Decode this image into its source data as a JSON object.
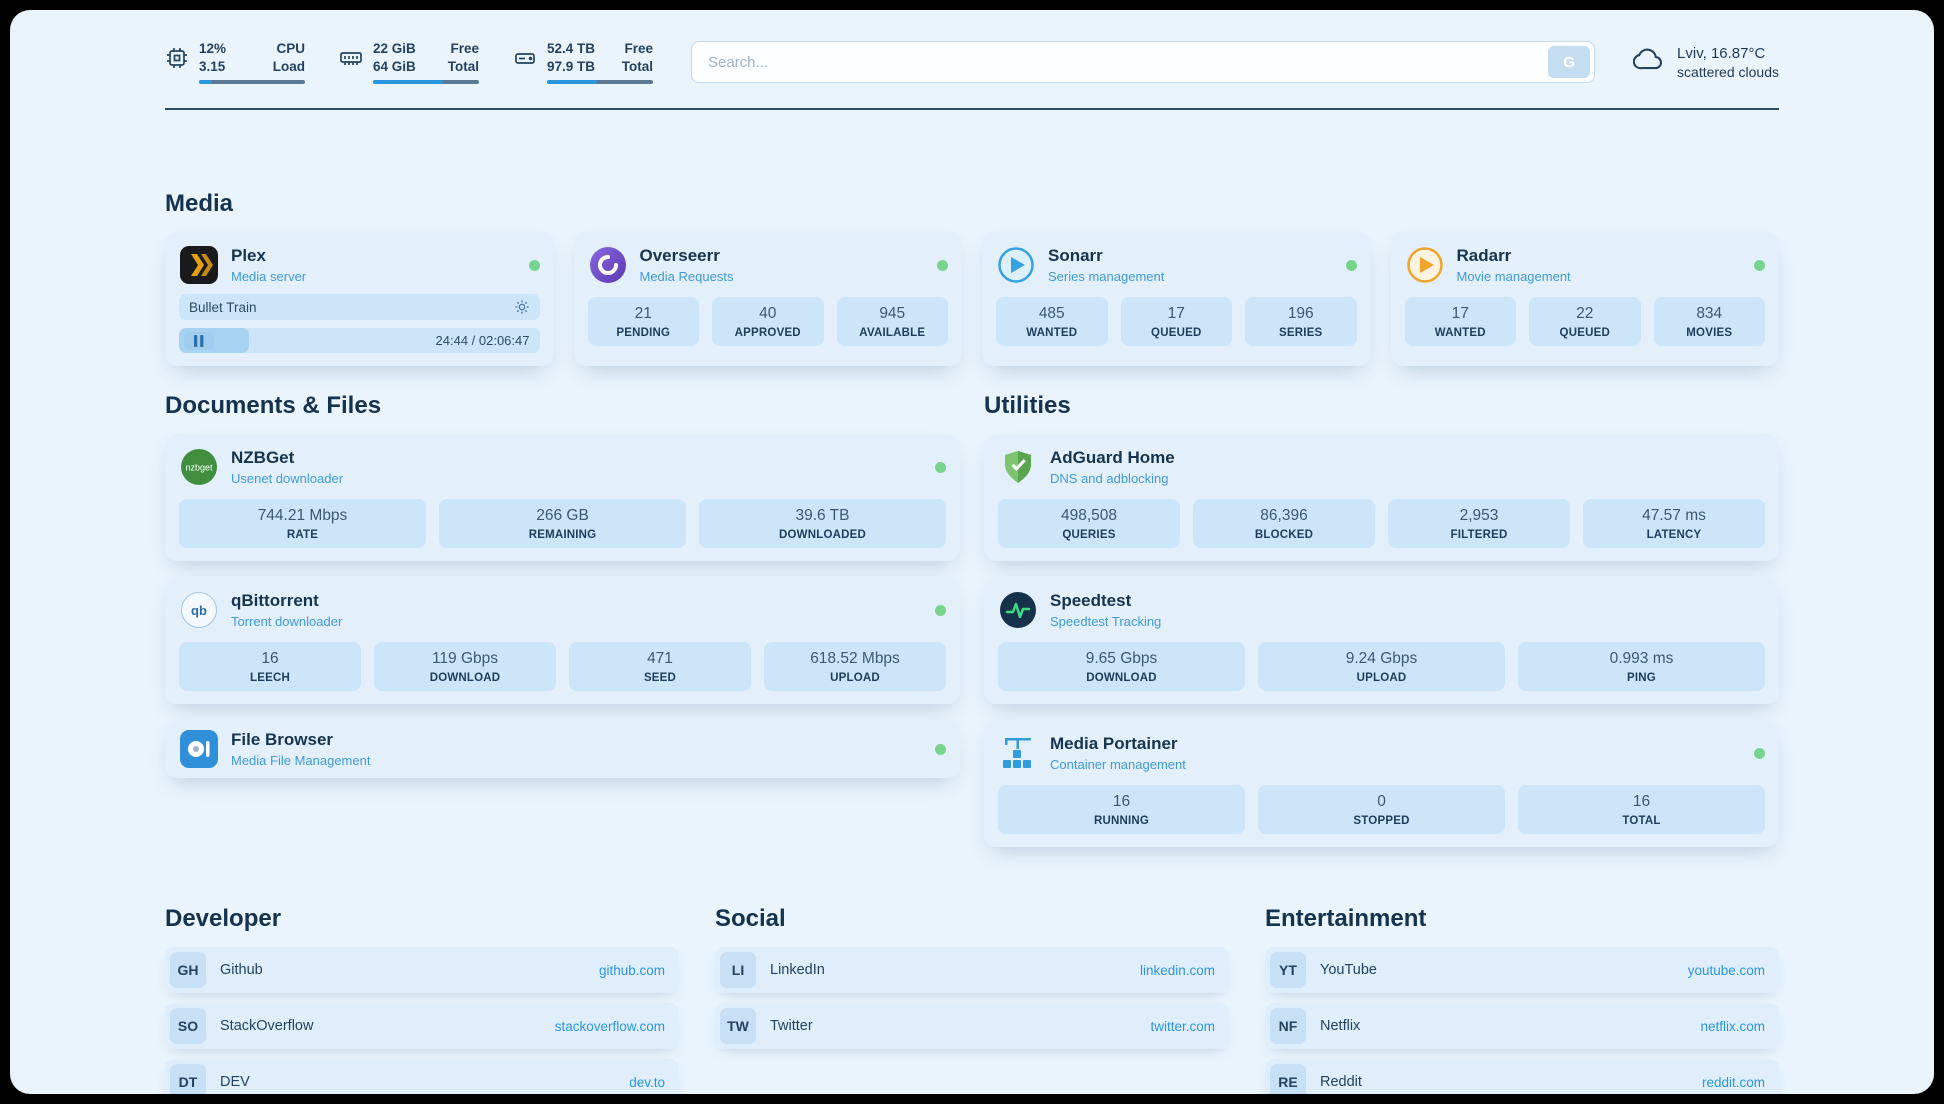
{
  "header": {
    "metrics": [
      {
        "value_top": "12%",
        "label_top": "CPU",
        "value_bottom": "3.15",
        "label_bottom": "Load",
        "progress_pct": 12
      },
      {
        "value_top": "22 GiB",
        "label_top": "Free",
        "value_bottom": "64 GiB",
        "label_bottom": "Total",
        "progress_pct": 66
      },
      {
        "value_top": "52.4 TB",
        "label_top": "Free",
        "value_bottom": "97.9 TB",
        "label_bottom": "Total",
        "progress_pct": 47
      }
    ],
    "search": {
      "placeholder": "Search...",
      "button_label": "G"
    },
    "weather": {
      "location": "Lviv, 16.87°C",
      "condition": "scattered clouds"
    }
  },
  "sections": {
    "media": "Media",
    "documents": "Documents & Files",
    "utilities": "Utilities",
    "developer": "Developer",
    "social": "Social",
    "entertainment": "Entertainment"
  },
  "apps": {
    "plex": {
      "name": "Plex",
      "subtitle": "Media server",
      "now_playing": "Bullet Train",
      "time": "24:44 / 02:06:47",
      "progress_pct": 19.5
    },
    "overseerr": {
      "name": "Overseerr",
      "subtitle": "Media Requests",
      "stats": [
        {
          "value": "21",
          "label": "PENDING"
        },
        {
          "value": "40",
          "label": "APPROVED"
        },
        {
          "value": "945",
          "label": "AVAILABLE"
        }
      ]
    },
    "sonarr": {
      "name": "Sonarr",
      "subtitle": "Series management",
      "stats": [
        {
          "value": "485",
          "label": "WANTED"
        },
        {
          "value": "17",
          "label": "QUEUED"
        },
        {
          "value": "196",
          "label": "SERIES"
        }
      ]
    },
    "radarr": {
      "name": "Radarr",
      "subtitle": "Movie management",
      "stats": [
        {
          "value": "17",
          "label": "WANTED"
        },
        {
          "value": "22",
          "label": "QUEUED"
        },
        {
          "value": "834",
          "label": "MOVIES"
        }
      ]
    },
    "nzbget": {
      "name": "NZBGet",
      "subtitle": "Usenet downloader",
      "icon_text": "nzbget",
      "stats": [
        {
          "value": "744.21 Mbps",
          "label": "RATE"
        },
        {
          "value": "266 GB",
          "label": "REMAINING"
        },
        {
          "value": "39.6 TB",
          "label": "DOWNLOADED"
        }
      ]
    },
    "qbittorrent": {
      "name": "qBittorrent",
      "subtitle": "Torrent downloader",
      "icon_text": "qb",
      "stats": [
        {
          "value": "16",
          "label": "LEECH"
        },
        {
          "value": "119 Gbps",
          "label": "DOWNLOAD"
        },
        {
          "value": "471",
          "label": "SEED"
        },
        {
          "value": "618.52 Mbps",
          "label": "UPLOAD"
        }
      ]
    },
    "filebrowser": {
      "name": "File Browser",
      "subtitle": "Media File Management"
    },
    "adguard": {
      "name": "AdGuard Home",
      "subtitle": "DNS and adblocking",
      "stats": [
        {
          "value": "498,508",
          "label": "QUERIES"
        },
        {
          "value": "86,396",
          "label": "BLOCKED"
        },
        {
          "value": "2,953",
          "label": "FILTERED"
        },
        {
          "value": "47.57 ms",
          "label": "LATENCY"
        }
      ]
    },
    "speedtest": {
      "name": "Speedtest",
      "subtitle": "Speedtest Tracking",
      "stats": [
        {
          "value": "9.65 Gbps",
          "label": "DOWNLOAD"
        },
        {
          "value": "9.24 Gbps",
          "label": "UPLOAD"
        },
        {
          "value": "0.993 ms",
          "label": "PING"
        }
      ]
    },
    "portainer": {
      "name": "Media Portainer",
      "subtitle": "Container management",
      "stats": [
        {
          "value": "16",
          "label": "RUNNING"
        },
        {
          "value": "0",
          "label": "STOPPED"
        },
        {
          "value": "16",
          "label": "TOTAL"
        }
      ]
    }
  },
  "bookmarks": {
    "developer": [
      {
        "abbr": "GH",
        "name": "Github",
        "url": "github.com"
      },
      {
        "abbr": "SO",
        "name": "StackOverflow",
        "url": "stackoverflow.com"
      },
      {
        "abbr": "DT",
        "name": "DEV",
        "url": "dev.to"
      }
    ],
    "social": [
      {
        "abbr": "LI",
        "name": "LinkedIn",
        "url": "linkedin.com"
      },
      {
        "abbr": "TW",
        "name": "Twitter",
        "url": "twitter.com"
      }
    ],
    "entertainment": [
      {
        "abbr": "YT",
        "name": "YouTube",
        "url": "youtube.com"
      },
      {
        "abbr": "NF",
        "name": "Netflix",
        "url": "netflix.com"
      },
      {
        "abbr": "RE",
        "name": "Reddit",
        "url": "reddit.com"
      }
    ]
  }
}
